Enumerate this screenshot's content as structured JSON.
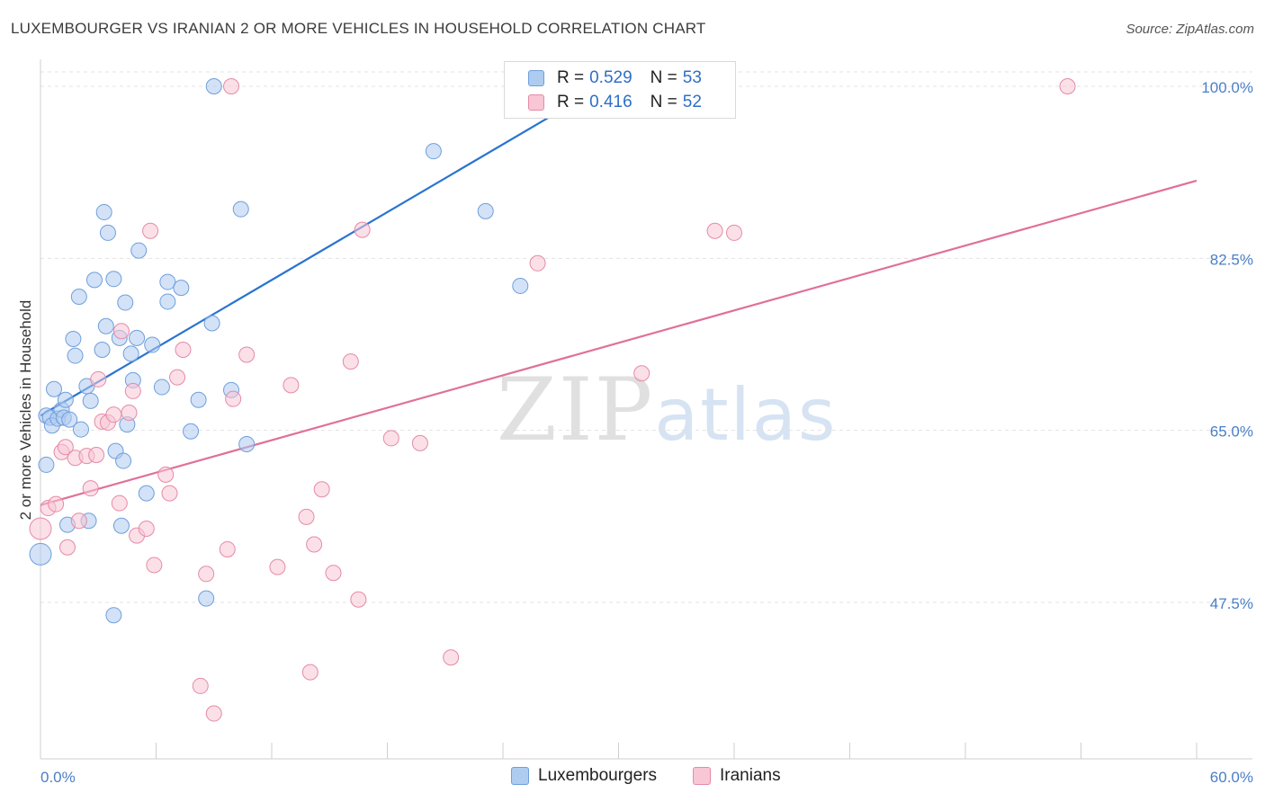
{
  "header": {
    "title": "LUXEMBOURGER VS IRANIAN 2 OR MORE VEHICLES IN HOUSEHOLD CORRELATION CHART",
    "source": "Source: ZipAtlas.com"
  },
  "watermark": {
    "zip": "ZIP",
    "atlas": "atlas"
  },
  "legend": {
    "rows": [
      {
        "r_label": "R =",
        "r_value": "0.529",
        "n_label": "N =",
        "n_value": "53",
        "color": "#aecbf0",
        "border": "#6f9fdc"
      },
      {
        "r_label": "R =",
        "r_value": "0.416",
        "n_label": "N =",
        "n_value": "52",
        "color": "#f8c6d5",
        "border": "#e58aa8"
      }
    ]
  },
  "bottom_legend": {
    "items": [
      {
        "label": "Luxembourgers",
        "color": "#aecbf0",
        "border": "#6f9fdc"
      },
      {
        "label": "Iranians",
        "color": "#f8c6d5",
        "border": "#e58aa8"
      }
    ]
  },
  "chart_data": {
    "type": "scatter",
    "title": "LUXEMBOURGER VS IRANIAN 2 OR MORE VEHICLES IN HOUSEHOLD CORRELATION CHART",
    "xlabel": "",
    "ylabel": "2 or more Vehicles in Household",
    "xlim": [
      0,
      60
    ],
    "ylim": [
      30.5,
      102
    ],
    "x_tick_labels": [
      "0.0%",
      "60.0%"
    ],
    "y_ticks": [
      47.5,
      65.0,
      82.5,
      100.0
    ],
    "y_tick_labels": [
      "47.5%",
      "65.0%",
      "82.5%",
      "100.0%"
    ],
    "grid": true,
    "series": [
      {
        "name": "Luxembourgers",
        "color": "#aecbf0",
        "stroke": "#6f9fdc",
        "line_color": "#2a74d0",
        "trend": {
          "x": [
            0.0,
            30.0
          ],
          "y": [
            66.5,
            101.0
          ]
        },
        "points": [
          [
            0.3,
            66.5
          ],
          [
            0.5,
            66.3
          ],
          [
            0.6,
            65.5
          ],
          [
            0.7,
            69.2
          ],
          [
            0.9,
            66.2
          ],
          [
            1.1,
            67.1
          ],
          [
            1.2,
            66.3
          ],
          [
            1.3,
            68.1
          ],
          [
            1.5,
            66.1
          ],
          [
            1.7,
            74.3
          ],
          [
            1.8,
            72.6
          ],
          [
            2.0,
            78.6
          ],
          [
            2.1,
            65.1
          ],
          [
            2.4,
            69.5
          ],
          [
            2.6,
            68.0
          ],
          [
            2.8,
            80.3
          ],
          [
            3.2,
            73.2
          ],
          [
            3.3,
            87.2
          ],
          [
            3.4,
            75.6
          ],
          [
            3.5,
            85.1
          ],
          [
            3.8,
            80.4
          ],
          [
            3.9,
            62.9
          ],
          [
            4.1,
            74.4
          ],
          [
            4.3,
            61.9
          ],
          [
            4.2,
            55.3
          ],
          [
            4.4,
            78.0
          ],
          [
            4.5,
            65.6
          ],
          [
            4.7,
            72.8
          ],
          [
            4.8,
            70.1
          ],
          [
            5.1,
            83.3
          ],
          [
            5.0,
            74.4
          ],
          [
            5.5,
            58.6
          ],
          [
            5.8,
            73.7
          ],
          [
            6.3,
            69.4
          ],
          [
            6.6,
            78.1
          ],
          [
            6.6,
            80.1
          ],
          [
            7.3,
            79.5
          ],
          [
            7.8,
            64.9
          ],
          [
            8.2,
            68.1
          ],
          [
            8.9,
            75.9
          ],
          [
            8.6,
            47.9
          ],
          [
            9.0,
            100.0
          ],
          [
            9.9,
            69.1
          ],
          [
            10.4,
            87.5
          ],
          [
            10.7,
            63.6
          ],
          [
            20.4,
            93.4
          ],
          [
            23.1,
            87.3
          ],
          [
            24.9,
            79.7
          ],
          [
            3.8,
            46.2
          ],
          [
            2.5,
            55.8
          ],
          [
            0.3,
            61.5
          ],
          [
            1.4,
            55.4
          ],
          [
            0.0,
            52.4
          ]
        ]
      },
      {
        "name": "Iranians",
        "color": "#f8c6d5",
        "stroke": "#e58aa8",
        "line_color": "#e0709a",
        "trend": {
          "x": [
            0.0,
            60.0
          ],
          "y": [
            57.4,
            90.4
          ]
        },
        "points": [
          [
            0.0,
            55.0
          ],
          [
            0.4,
            57.1
          ],
          [
            0.8,
            57.5
          ],
          [
            1.1,
            62.8
          ],
          [
            1.3,
            63.3
          ],
          [
            1.4,
            53.1
          ],
          [
            1.8,
            62.2
          ],
          [
            2.0,
            55.8
          ],
          [
            2.4,
            62.4
          ],
          [
            2.6,
            59.1
          ],
          [
            2.9,
            62.5
          ],
          [
            3.0,
            70.2
          ],
          [
            3.2,
            65.9
          ],
          [
            3.5,
            65.8
          ],
          [
            3.8,
            66.6
          ],
          [
            4.1,
            57.6
          ],
          [
            4.2,
            75.1
          ],
          [
            4.6,
            66.8
          ],
          [
            4.8,
            69.0
          ],
          [
            5.0,
            54.3
          ],
          [
            5.5,
            55.0
          ],
          [
            5.7,
            85.3
          ],
          [
            5.9,
            51.3
          ],
          [
            6.5,
            60.5
          ],
          [
            6.7,
            58.6
          ],
          [
            7.1,
            70.4
          ],
          [
            7.4,
            73.2
          ],
          [
            8.3,
            39.0
          ],
          [
            8.6,
            50.4
          ],
          [
            9.0,
            36.2
          ],
          [
            9.7,
            52.9
          ],
          [
            9.9,
            100.0
          ],
          [
            10.0,
            68.2
          ],
          [
            10.7,
            72.7
          ],
          [
            12.3,
            51.1
          ],
          [
            13.0,
            69.6
          ],
          [
            13.8,
            56.2
          ],
          [
            14.0,
            40.4
          ],
          [
            14.2,
            53.4
          ],
          [
            14.6,
            59.0
          ],
          [
            15.2,
            50.5
          ],
          [
            16.1,
            72.0
          ],
          [
            16.5,
            47.8
          ],
          [
            16.7,
            85.4
          ],
          [
            18.2,
            64.2
          ],
          [
            19.7,
            63.7
          ],
          [
            21.3,
            41.9
          ],
          [
            25.8,
            82.0
          ],
          [
            31.2,
            70.8
          ],
          [
            35.0,
            85.3
          ],
          [
            36.0,
            85.1
          ],
          [
            53.3,
            100.0
          ]
        ]
      }
    ]
  }
}
